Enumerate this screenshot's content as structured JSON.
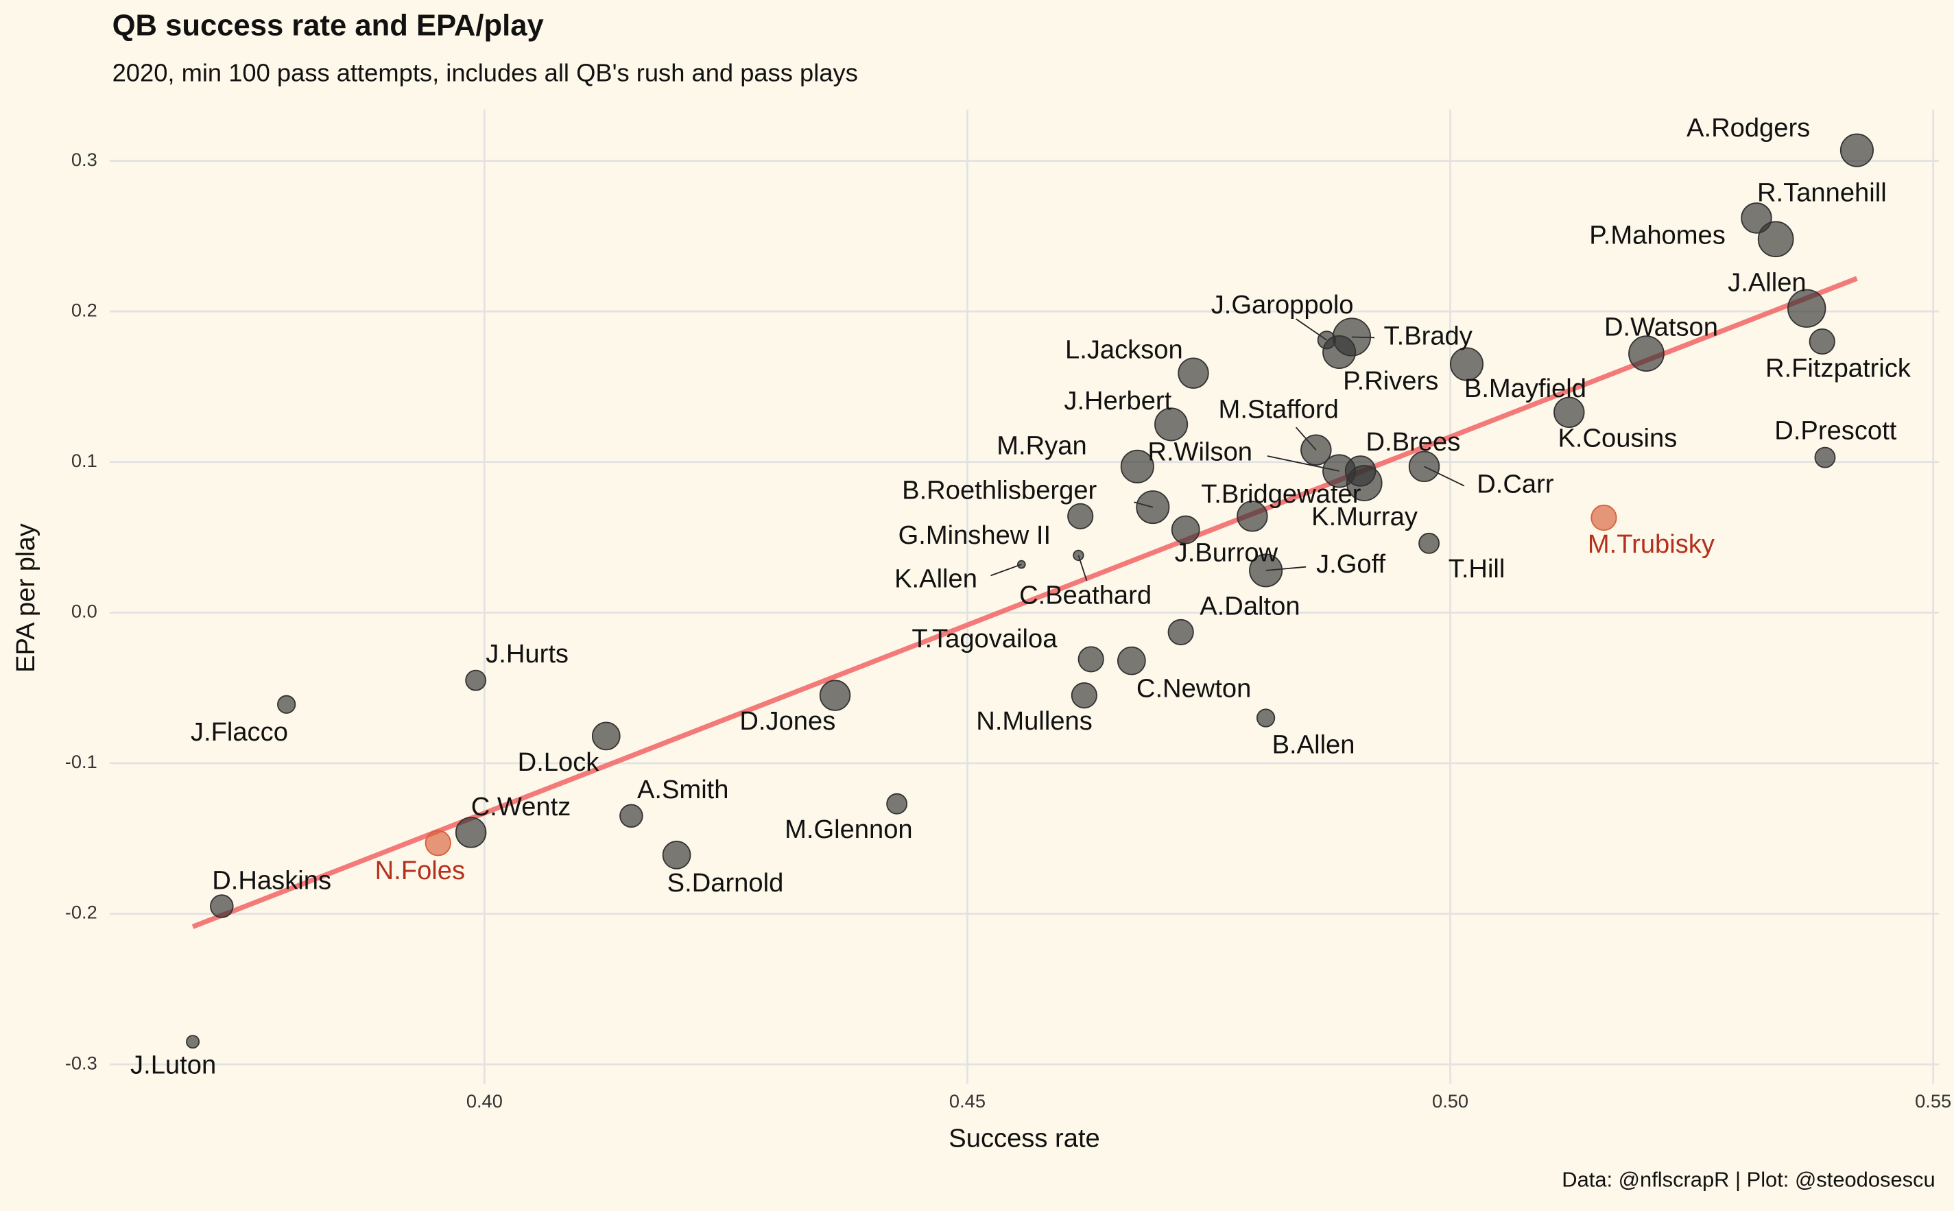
{
  "chart_data": {
    "type": "scatter",
    "title": "QB success rate and EPA/play",
    "subtitle": "2020, min 100 pass attempts, includes all QB's rush and pass plays",
    "x_label": "Success rate",
    "y_label": "EPA per play",
    "caption": "Data: @nflscrapR | Plot: @steodosescu",
    "xlim": [
      0.3612,
      0.5506
    ],
    "ylim": [
      -0.313,
      0.334
    ],
    "xticks": [
      {
        "value": 0.4,
        "label": "0.40"
      },
      {
        "value": 0.45,
        "label": "0.45"
      },
      {
        "value": 0.5,
        "label": "0.50"
      },
      {
        "value": 0.55,
        "label": "0.55"
      }
    ],
    "yticks": [
      -0.3,
      -0.2,
      -0.1,
      {
        "value": 0,
        "label": "0.0"
      },
      0.1,
      0.2,
      0.3
    ],
    "grid": true,
    "labels": [
      "A.Rodgers",
      "R.Tannehill",
      "P.Mahomes",
      "J.Allen",
      "R.Fitzpatrick",
      "D.Watson",
      "D.Prescott",
      "K.Cousins",
      "M.Trubisky",
      "B.Mayfield",
      "D.Carr",
      "T.Hill",
      "J.Garoppolo",
      "T.Brady",
      "P.Rivers",
      "M.Stafford",
      "R.Wilson",
      "D.Brees",
      "K.Murray",
      "T.Bridgewater",
      "J.Goff",
      "L.Jackson",
      "J.Herbert",
      "M.Ryan",
      "B.Roethlisberger",
      "J.Burrow",
      "G.Minshew II",
      "C.Beathard",
      "K.Allen",
      "A.Dalton",
      "T.Tagovailoa",
      "C.Newton",
      "N.Mullens",
      "B.Allen",
      "D.Jones",
      "M.Glennon",
      "S.Darnold",
      "A.Smith",
      "D.Lock",
      "C.Wentz",
      "N.Foles",
      "J.Hurts",
      "J.Flacco",
      "D.Haskins",
      "J.Luton"
    ],
    "x": [
      0.5421,
      0.5317,
      0.5337,
      0.5369,
      0.5385,
      0.5203,
      0.5388,
      0.5123,
      0.5159,
      0.5017,
      0.4973,
      0.4978,
      0.4872,
      0.4898,
      0.4885,
      0.4861,
      0.4885,
      0.4907,
      0.4911,
      0.4795,
      0.4809,
      0.4734,
      0.4711,
      0.4676,
      0.4692,
      0.4726,
      0.4617,
      0.4615,
      0.4556,
      0.4721,
      0.4628,
      0.467,
      0.4621,
      0.4809,
      0.4363,
      0.4427,
      0.4199,
      0.4152,
      0.4126,
      0.3986,
      0.3952,
      0.3991,
      0.3795,
      0.3728,
      0.3698
    ],
    "y": [
      0.307,
      0.262,
      0.248,
      0.202,
      0.18,
      0.172,
      0.103,
      0.133,
      0.063,
      0.165,
      0.097,
      0.046,
      0.181,
      0.183,
      0.173,
      0.108,
      0.094,
      0.094,
      0.086,
      0.064,
      0.028,
      0.159,
      0.125,
      0.097,
      0.07,
      0.055,
      0.064,
      0.038,
      0.032,
      -0.013,
      -0.031,
      -0.032,
      -0.055,
      -0.07,
      -0.055,
      -0.127,
      -0.161,
      -0.135,
      -0.082,
      -0.146,
      -0.153,
      -0.045,
      -0.061,
      -0.195,
      -0.285
    ],
    "sizes": [
      13,
      12,
      14,
      15,
      10,
      14,
      8,
      12,
      10,
      13,
      12,
      8,
      7,
      15,
      13,
      12,
      13,
      12,
      14,
      12,
      13,
      12,
      13,
      13,
      13,
      11,
      10,
      4,
      3,
      10,
      10,
      11,
      10,
      7,
      12,
      8,
      11,
      9,
      11,
      12,
      10,
      8,
      7,
      9,
      5
    ],
    "colors": [
      "#333333",
      "#333333",
      "#333333",
      "#333333",
      "#333333",
      "#333333",
      "#333333",
      "#333333",
      "#d9603b",
      "#333333",
      "#333333",
      "#333333",
      "#333333",
      "#333333",
      "#333333",
      "#333333",
      "#333333",
      "#333333",
      "#333333",
      "#333333",
      "#333333",
      "#333333",
      "#333333",
      "#333333",
      "#333333",
      "#333333",
      "#333333",
      "#333333",
      "#333333",
      "#333333",
      "#333333",
      "#333333",
      "#333333",
      "#333333",
      "#333333",
      "#333333",
      "#333333",
      "#333333",
      "#333333",
      "#333333",
      "#d9603b",
      "#333333",
      "#333333",
      "#333333",
      "#333333"
    ],
    "label_colors": [
      "#111111",
      "#111111",
      "#111111",
      "#111111",
      "#111111",
      "#111111",
      "#111111",
      "#111111",
      "#b5311d",
      "#111111",
      "#111111",
      "#111111",
      "#111111",
      "#111111",
      "#111111",
      "#111111",
      "#111111",
      "#111111",
      "#111111",
      "#111111",
      "#111111",
      "#111111",
      "#111111",
      "#111111",
      "#111111",
      "#111111",
      "#111111",
      "#111111",
      "#111111",
      "#111111",
      "#111111",
      "#111111",
      "#111111",
      "#111111",
      "#111111",
      "#111111",
      "#111111",
      "#111111",
      "#111111",
      "#111111",
      "#b5311d",
      "#111111",
      "#111111",
      "#111111",
      "#111111"
    ],
    "trendline": {
      "x": [
        0.3698,
        0.5421
      ],
      "y": [
        -0.2086,
        0.2219
      ],
      "color": "#f26b6b"
    }
  }
}
